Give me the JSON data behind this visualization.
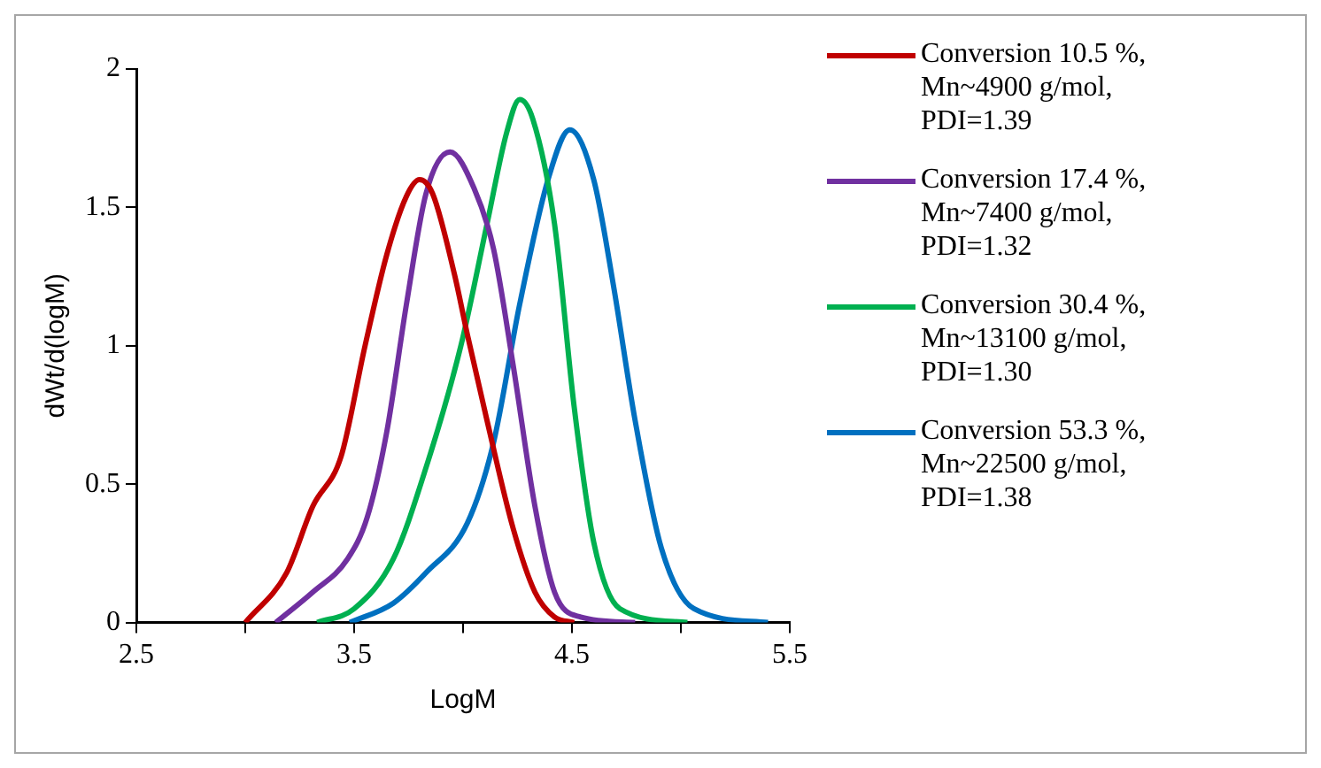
{
  "chart_data": {
    "type": "line",
    "xlabel": "LogM",
    "ylabel": "dWt/d(logM)",
    "xlim": [
      2.5,
      5.5
    ],
    "xticks": [
      2.5,
      {
        "value": 3,
        "label": null
      },
      3.5,
      {
        "value": 4,
        "label": null
      },
      4.5,
      {
        "value": 5,
        "label": null
      },
      5.5
    ],
    "ylim": [
      0,
      2
    ],
    "yticks": [
      0,
      0.5,
      1,
      1.5,
      2
    ],
    "grid": false,
    "legend": "right",
    "marker": "none",
    "line_style": "solid",
    "series": [
      {
        "name": "Conversion 10.5 %, Mn~4900 g/mol, PDI=1.39",
        "color": "#c00000",
        "x": [
          3.0,
          3.19,
          3.31,
          3.44,
          3.55,
          3.65,
          3.74,
          3.8,
          3.86,
          3.96,
          4.02,
          4.11,
          4.23,
          4.33,
          4.42,
          4.51
        ],
        "values": [
          0,
          0.18,
          0.42,
          0.6,
          1.0,
          1.33,
          1.54,
          1.6,
          1.55,
          1.26,
          1.04,
          0.73,
          0.34,
          0.11,
          0.02,
          0
        ]
      },
      {
        "name": "Conversion 17.4 %, Mn~7400 g/mol, PDI=1.32",
        "color": "#7030a0",
        "x": [
          3.14,
          3.31,
          3.47,
          3.56,
          3.65,
          3.74,
          3.83,
          3.94,
          4.05,
          4.14,
          4.23,
          4.33,
          4.42,
          4.54,
          4.79
        ],
        "values": [
          0,
          0.11,
          0.23,
          0.38,
          0.69,
          1.15,
          1.55,
          1.7,
          1.57,
          1.35,
          0.93,
          0.42,
          0.11,
          0.02,
          0
        ]
      },
      {
        "name": "Conversion 30.4 %, Mn~13100 g/mol, PDI=1.30",
        "color": "#00b050",
        "x": [
          3.33,
          3.5,
          3.68,
          3.83,
          3.99,
          4.11,
          4.2,
          4.26,
          4.32,
          4.42,
          4.51,
          4.6,
          4.72,
          5.03
        ],
        "values": [
          0,
          0.05,
          0.23,
          0.56,
          1.0,
          1.44,
          1.77,
          1.89,
          1.82,
          1.44,
          0.78,
          0.29,
          0.05,
          0
        ]
      },
      {
        "name": "Conversion 53.3 %, Mn~22500 g/mol, PDI=1.38",
        "color": "#0070c0",
        "x": [
          3.48,
          3.68,
          3.83,
          4.02,
          4.14,
          4.26,
          4.39,
          4.49,
          4.6,
          4.69,
          4.79,
          4.91,
          5.06,
          5.4
        ],
        "values": [
          0,
          0.07,
          0.18,
          0.36,
          0.65,
          1.15,
          1.6,
          1.78,
          1.6,
          1.22,
          0.73,
          0.27,
          0.05,
          0
        ]
      }
    ]
  }
}
